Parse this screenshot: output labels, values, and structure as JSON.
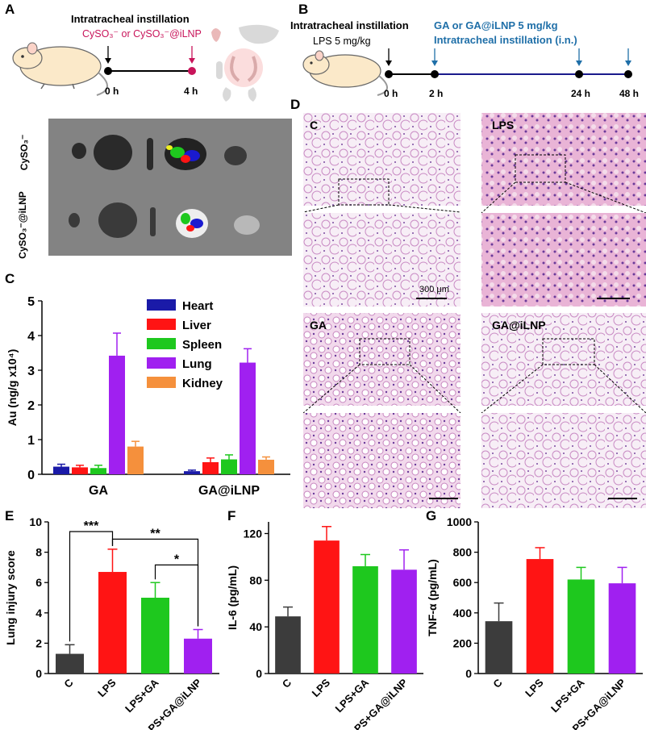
{
  "panelA": {
    "letter": "A",
    "title": "Intratracheal instillation",
    "subtitle": "CySO₃⁻ or CySO₃⁻@iLNP",
    "t0": "0 h",
    "t1": "4 h",
    "row_labels": [
      "CySO₃⁻",
      "CySO₃⁻@iLNP"
    ]
  },
  "panelB": {
    "letter": "B",
    "title": "Intratracheal instillation",
    "lps": "LPS 5 mg/kg",
    "treat_line1": "GA or GA@iLNP  5 mg/kg",
    "treat_line2": "Intratracheal instillation (i.n.)",
    "timepoints": [
      "0 h",
      "2 h",
      "24 h",
      "48 h"
    ]
  },
  "panelD": {
    "letter": "D",
    "labels": [
      "C",
      "LPS",
      "GA",
      "GA@iLNP"
    ],
    "scalebar": "300 μm"
  },
  "colors": {
    "heart": "#1a1aa8",
    "liver": "#ff1414",
    "spleen": "#1ec81e",
    "lung": "#a020f0",
    "kidney": "#f5903c",
    "control": "#3c3c3c",
    "time_accent": "#1f6fa8",
    "pink_accent": "#c8145a"
  },
  "chart_data": [
    {
      "panel": "C",
      "type": "bar",
      "categories": [
        "GA",
        "GA@iLNP"
      ],
      "ylabel": "Au (ng/g x10⁴)",
      "ylim": [
        0,
        5
      ],
      "yticks": [
        "0",
        "1",
        "2",
        "3",
        "4",
        "5"
      ],
      "legend_position": "top-center",
      "series": [
        {
          "name": "Heart",
          "values": [
            0.22,
            0.09
          ],
          "errors": [
            0.07,
            0.03
          ]
        },
        {
          "name": "Liver",
          "values": [
            0.2,
            0.35
          ],
          "errors": [
            0.06,
            0.12
          ]
        },
        {
          "name": "Spleen",
          "values": [
            0.18,
            0.43
          ],
          "errors": [
            0.08,
            0.13
          ]
        },
        {
          "name": "Lung",
          "values": [
            3.42,
            3.22
          ],
          "errors": [
            0.65,
            0.4
          ]
        },
        {
          "name": "Kidney",
          "values": [
            0.8,
            0.42
          ],
          "errors": [
            0.15,
            0.08
          ]
        }
      ]
    },
    {
      "panel": "E",
      "type": "bar",
      "categories": [
        "C",
        "LPS",
        "LPS+GA",
        "LPS+GA@iLNP"
      ],
      "ylabel": "Lung injury score",
      "ylim": [
        0,
        10
      ],
      "yticks": [
        "0",
        "2",
        "4",
        "6",
        "8",
        "10"
      ],
      "values": [
        1.3,
        6.7,
        5.0,
        2.3
      ],
      "errors": [
        0.6,
        1.5,
        1.0,
        0.6
      ],
      "significance": [
        {
          "from": 0,
          "to": 1,
          "label": "***"
        },
        {
          "from": 1,
          "to": 3,
          "label": "**"
        },
        {
          "from": 2,
          "to": 3,
          "label": "*"
        }
      ]
    },
    {
      "panel": "F",
      "type": "bar",
      "categories": [
        "C",
        "LPS",
        "LPS+GA",
        "LPS+GA@iLNP"
      ],
      "ylabel": "IL-6 (pg/mL)",
      "ylim": [
        0,
        130
      ],
      "yticks": [
        "0",
        "40",
        "80",
        "120"
      ],
      "values": [
        49,
        114,
        92,
        89
      ],
      "errors": [
        8,
        12,
        10,
        17
      ]
    },
    {
      "panel": "G",
      "type": "bar",
      "categories": [
        "C",
        "LPS",
        "LPS+GA",
        "LPS+GA@iLNP"
      ],
      "ylabel": "TNF-α (pg/mL)",
      "ylim": [
        0,
        1000
      ],
      "yticks": [
        "0",
        "200",
        "400",
        "600",
        "800",
        "1000"
      ],
      "values": [
        345,
        755,
        620,
        595
      ],
      "errors": [
        120,
        75,
        80,
        105
      ]
    }
  ]
}
